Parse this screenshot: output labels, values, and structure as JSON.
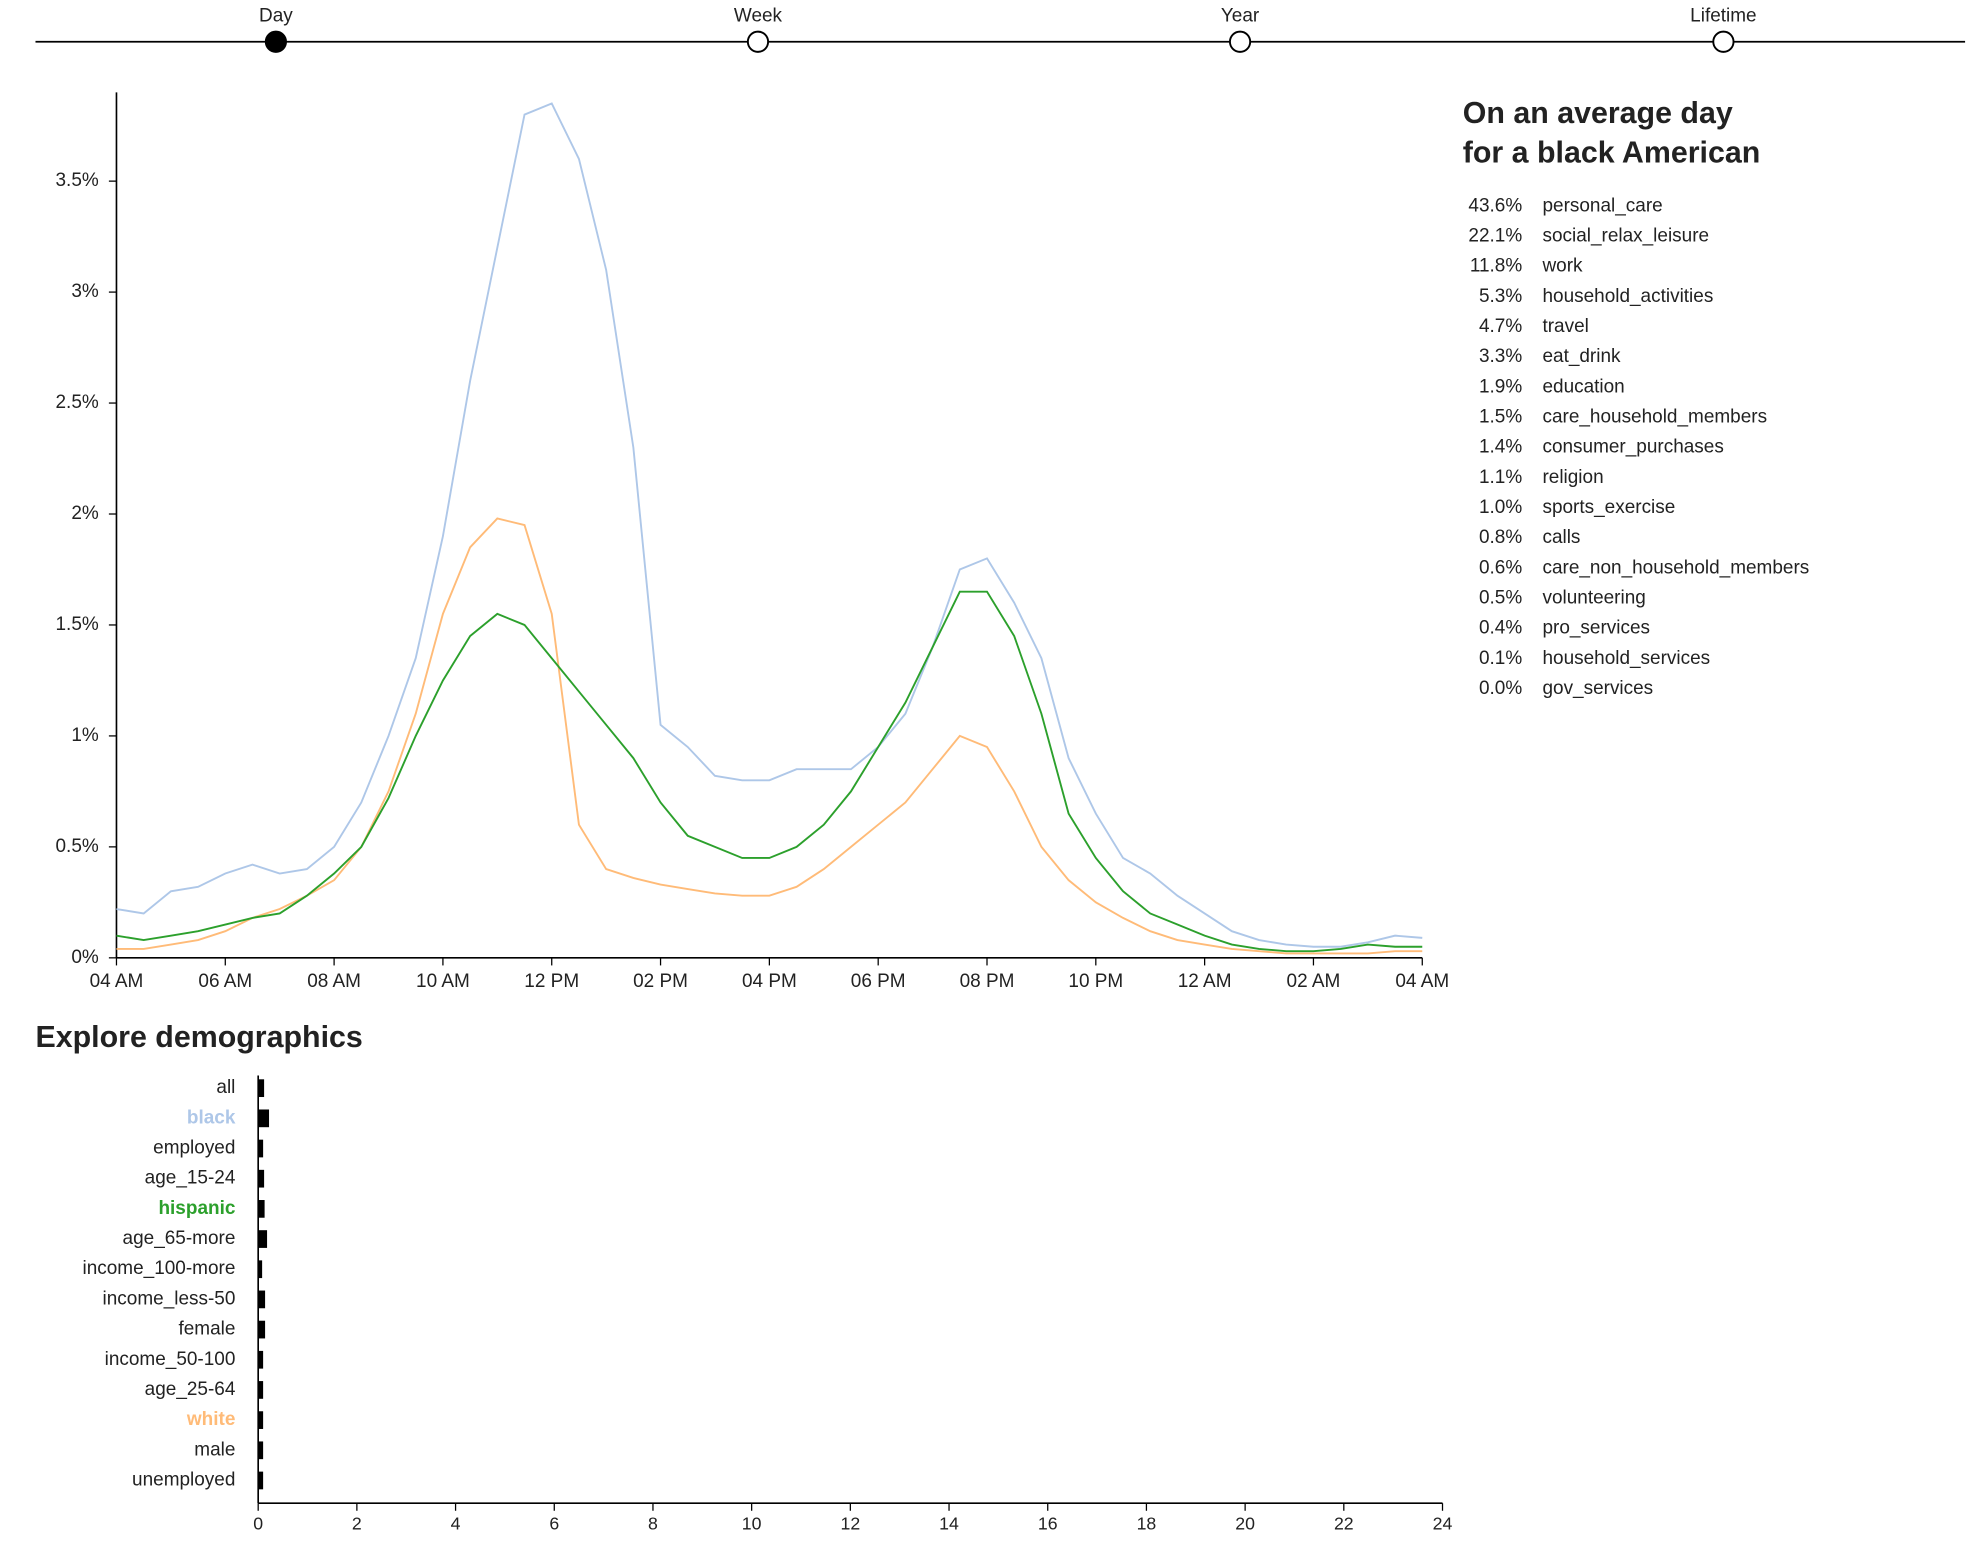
{
  "slider": {
    "options": [
      "Day",
      "Week",
      "Year",
      "Lifetime"
    ],
    "selected": 0
  },
  "summary": {
    "title_lines": [
      "On an average day",
      "for a black American"
    ],
    "rows": [
      [
        "43.6%",
        "personal_care"
      ],
      [
        "22.1%",
        "social_relax_leisure"
      ],
      [
        "11.8%",
        "work"
      ],
      [
        "5.3%",
        "household_activities"
      ],
      [
        "4.7%",
        "travel"
      ],
      [
        "3.3%",
        "eat_drink"
      ],
      [
        "1.9%",
        "education"
      ],
      [
        "1.5%",
        "care_household_members"
      ],
      [
        "1.4%",
        "consumer_purchases"
      ],
      [
        "1.1%",
        "religion"
      ],
      [
        "1.0%",
        "sports_exercise"
      ],
      [
        "0.8%",
        "calls"
      ],
      [
        "0.6%",
        "care_non_household_members"
      ],
      [
        "0.5%",
        "volunteering"
      ],
      [
        "0.4%",
        "pro_services"
      ],
      [
        "0.1%",
        "household_services"
      ],
      [
        "0.0%",
        "gov_services"
      ]
    ]
  },
  "chart_data": [
    {
      "type": "line",
      "x": [
        4,
        4.5,
        5,
        5.5,
        6,
        6.5,
        7,
        7.5,
        8,
        8.5,
        9,
        9.5,
        10,
        10.5,
        11,
        11.5,
        12,
        12.5,
        13,
        13.5,
        14,
        14.5,
        15,
        15.5,
        16,
        16.5,
        17,
        17.5,
        18,
        18.5,
        19,
        19.5,
        20,
        20.5,
        21,
        21.5,
        22,
        22.5,
        23,
        23.5,
        24,
        24.5,
        25,
        25.5,
        26,
        26.5,
        27,
        27.5,
        28
      ],
      "series": [
        {
          "color": "#aec7e8",
          "values": [
            0.22,
            0.2,
            0.3,
            0.32,
            0.38,
            0.42,
            0.38,
            0.4,
            0.5,
            0.7,
            1.0,
            1.35,
            1.9,
            2.6,
            3.2,
            3.8,
            3.85,
            3.6,
            3.1,
            2.3,
            1.05,
            0.95,
            0.82,
            0.8,
            0.8,
            0.85,
            0.85,
            0.85,
            0.95,
            1.1,
            1.4,
            1.75,
            1.8,
            1.6,
            1.35,
            0.9,
            0.65,
            0.45,
            0.38,
            0.28,
            0.2,
            0.12,
            0.08,
            0.06,
            0.05,
            0.05,
            0.07,
            0.1,
            0.09
          ]
        },
        {
          "color": "#ffbb78",
          "values": [
            0.04,
            0.04,
            0.06,
            0.08,
            0.12,
            0.18,
            0.22,
            0.28,
            0.35,
            0.5,
            0.75,
            1.1,
            1.55,
            1.85,
            1.98,
            1.95,
            1.55,
            0.6,
            0.4,
            0.36,
            0.33,
            0.31,
            0.29,
            0.28,
            0.28,
            0.32,
            0.4,
            0.5,
            0.6,
            0.7,
            0.85,
            1.0,
            0.95,
            0.75,
            0.5,
            0.35,
            0.25,
            0.18,
            0.12,
            0.08,
            0.06,
            0.04,
            0.03,
            0.02,
            0.02,
            0.02,
            0.02,
            0.03,
            0.03
          ]
        },
        {
          "color": "#2ca02c",
          "values": [
            0.1,
            0.08,
            0.1,
            0.12,
            0.15,
            0.18,
            0.2,
            0.28,
            0.38,
            0.5,
            0.72,
            1.0,
            1.25,
            1.45,
            1.55,
            1.5,
            1.35,
            1.2,
            1.05,
            0.9,
            0.7,
            0.55,
            0.5,
            0.45,
            0.45,
            0.5,
            0.6,
            0.75,
            0.95,
            1.15,
            1.4,
            1.65,
            1.65,
            1.45,
            1.1,
            0.65,
            0.45,
            0.3,
            0.2,
            0.15,
            0.1,
            0.06,
            0.04,
            0.03,
            0.03,
            0.04,
            0.06,
            0.05,
            0.05
          ]
        }
      ],
      "xlim": [
        4,
        28
      ],
      "xticks": [
        {
          "value": 4,
          "label": "04 AM"
        },
        {
          "value": 6,
          "label": "06 AM"
        },
        {
          "value": 8,
          "label": "08 AM"
        },
        {
          "value": 10,
          "label": "10 AM"
        },
        {
          "value": 12,
          "label": "12 PM"
        },
        {
          "value": 14,
          "label": "02 PM"
        },
        {
          "value": 16,
          "label": "04 PM"
        },
        {
          "value": 18,
          "label": "06 PM"
        },
        {
          "value": 20,
          "label": "08 PM"
        },
        {
          "value": 22,
          "label": "10 PM"
        },
        {
          "value": 24,
          "label": "12 AM"
        },
        {
          "value": 26,
          "label": "02 AM"
        },
        {
          "value": 28,
          "label": "04 AM"
        }
      ],
      "ylim": [
        0,
        3.9
      ],
      "yticks": [
        {
          "value": 0,
          "label": "0%"
        },
        {
          "value": 0.5,
          "label": "0.5%"
        },
        {
          "value": 1,
          "label": "1%"
        },
        {
          "value": 1.5,
          "label": "1.5%"
        },
        {
          "value": 2,
          "label": "2%"
        },
        {
          "value": 2.5,
          "label": "2.5%"
        },
        {
          "value": 3,
          "label": "3%"
        },
        {
          "value": 3.5,
          "label": "3.5%"
        }
      ]
    },
    {
      "type": "hbar",
      "title": "Explore demographics",
      "categories": [
        "all",
        "black",
        "employed",
        "age_15-24",
        "hispanic",
        "age_65-more",
        "income_100-more",
        "income_less-50",
        "female",
        "income_50-100",
        "age_25-64",
        "white",
        "male",
        "unemployed"
      ],
      "values": [
        0.12,
        0.22,
        0.1,
        0.12,
        0.13,
        0.18,
        0.08,
        0.14,
        0.14,
        0.1,
        0.1,
        0.1,
        0.1,
        0.1
      ],
      "color": "#000000",
      "label_colors": [
        "#222222",
        "#aec7e8",
        "#222222",
        "#222222",
        "#2ca02c",
        "#222222",
        "#222222",
        "#222222",
        "#222222",
        "#222222",
        "#222222",
        "#ffbb78",
        "#222222",
        "#222222"
      ],
      "xlim": [
        0,
        24
      ],
      "xticks": [
        0,
        2,
        4,
        6,
        8,
        10,
        12,
        14,
        16,
        18,
        20,
        22,
        24
      ]
    }
  ]
}
